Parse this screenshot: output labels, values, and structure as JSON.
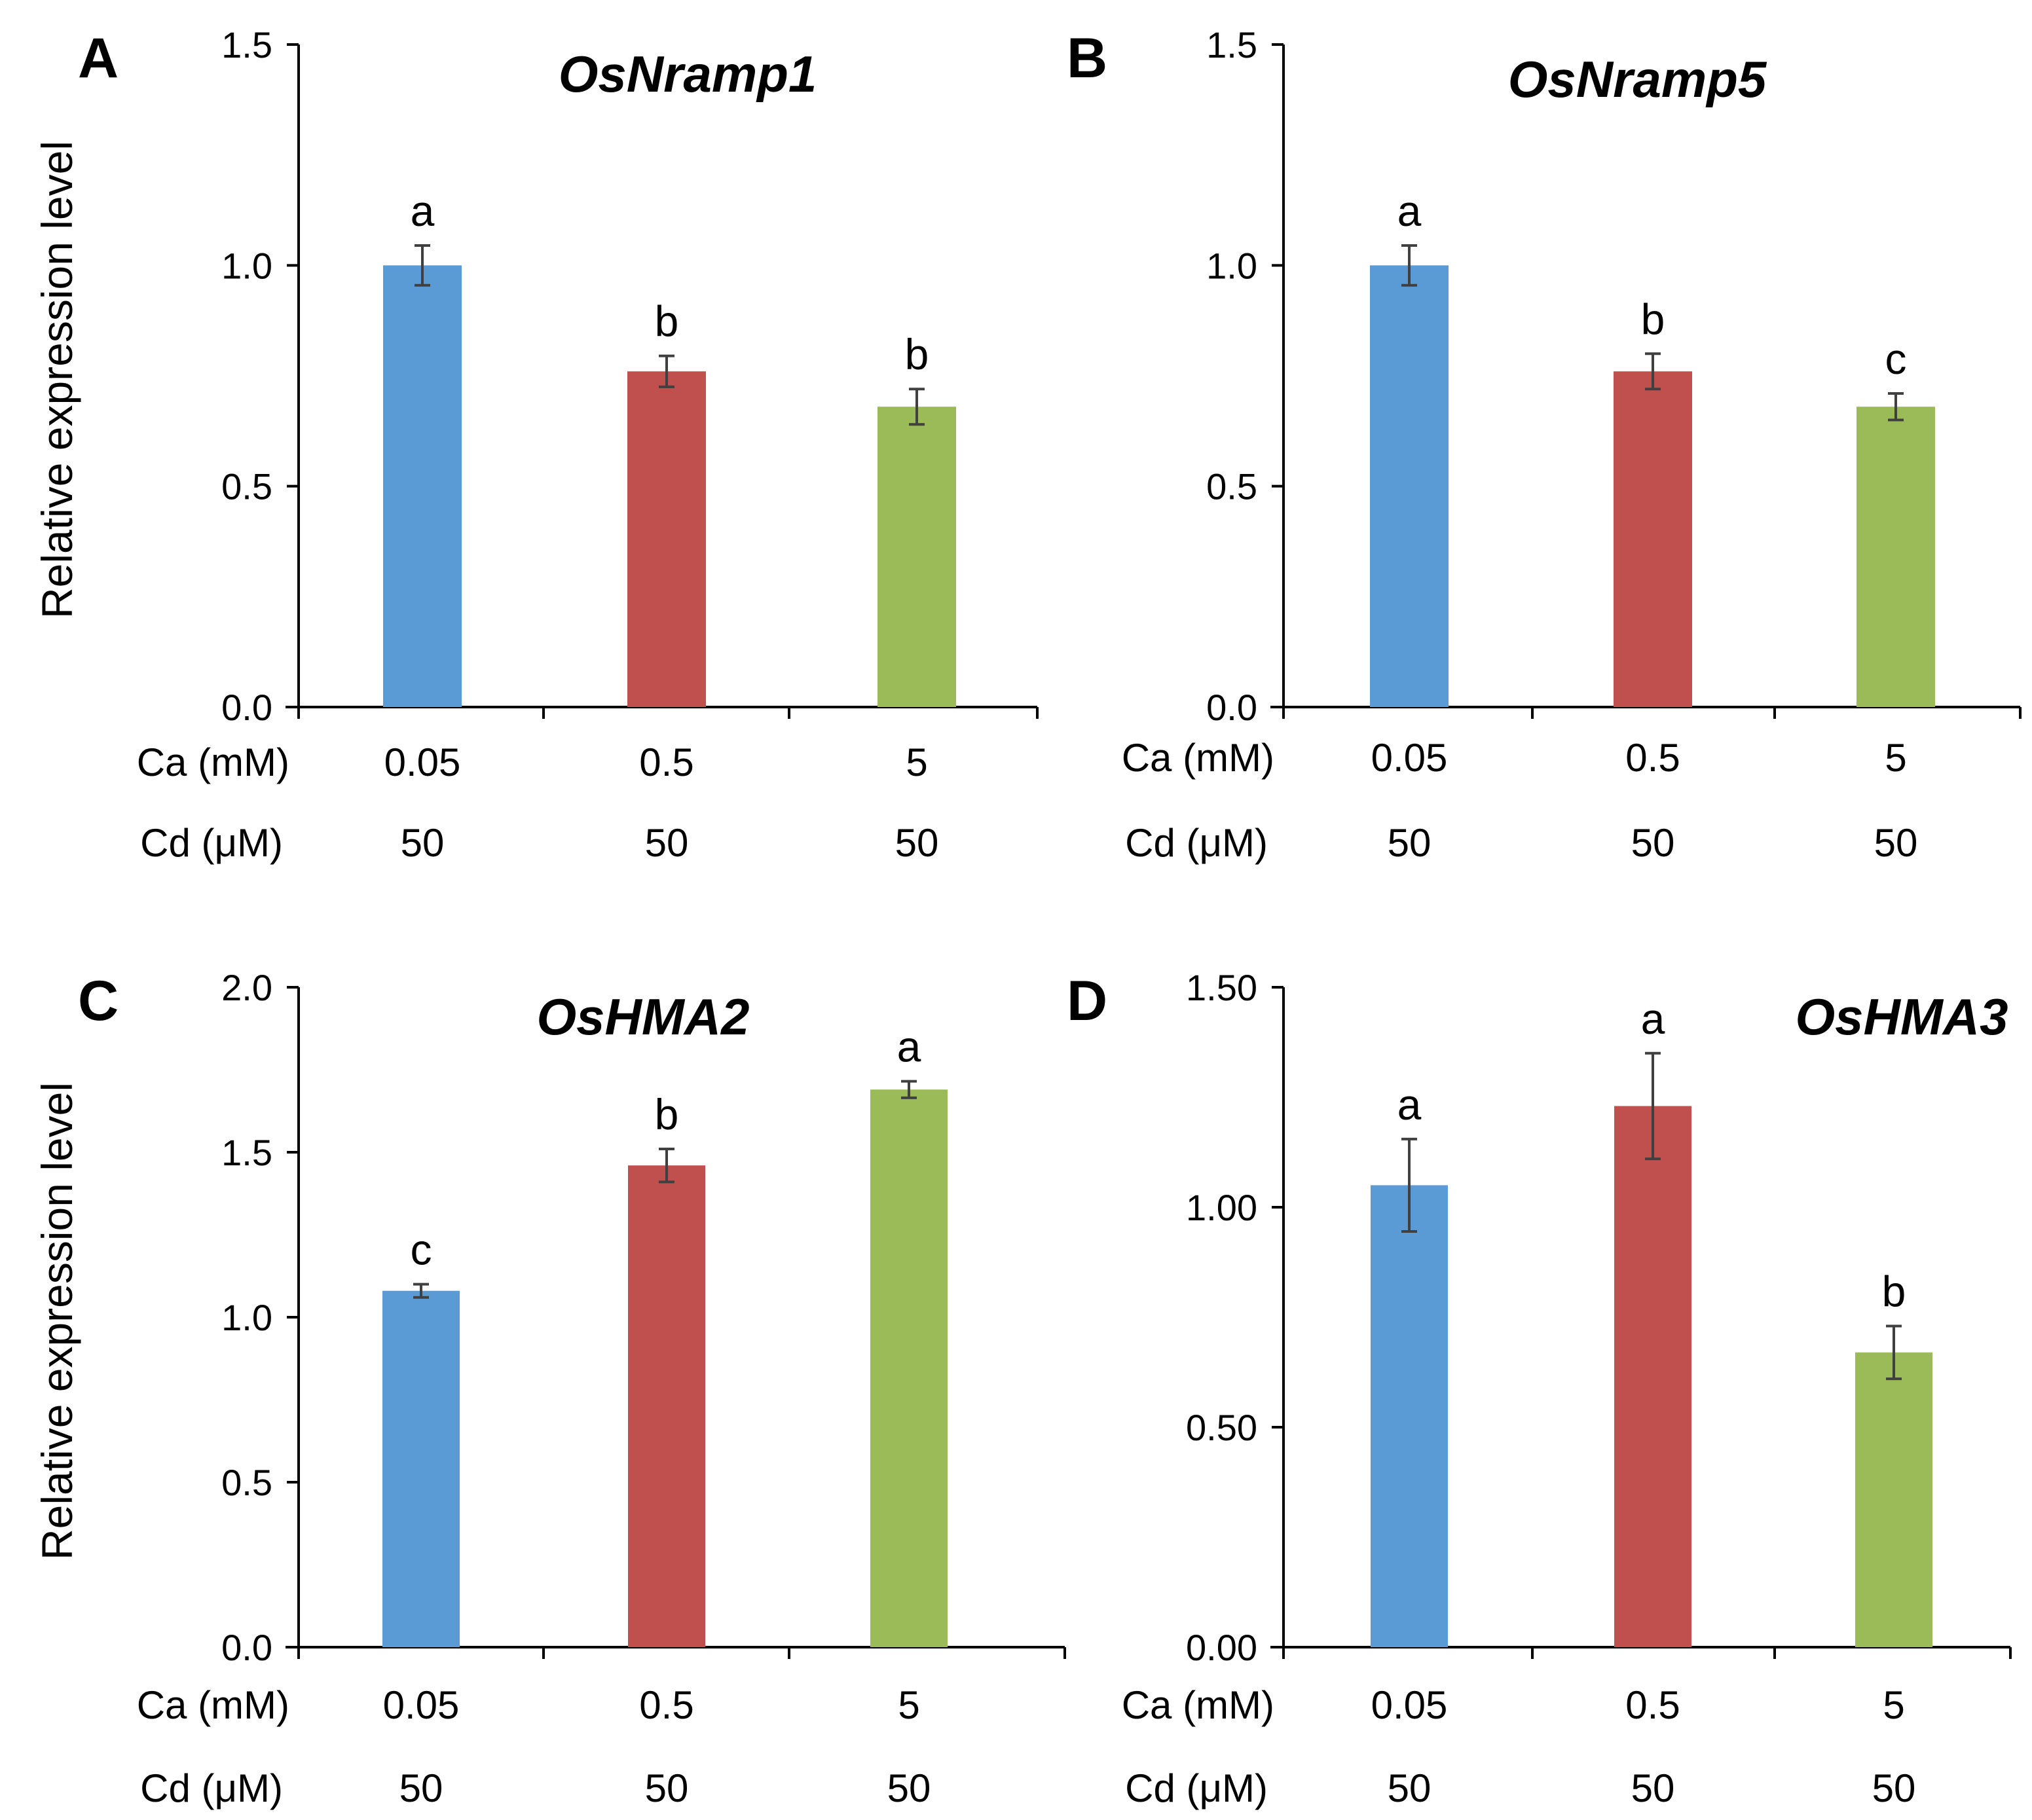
{
  "figure": {
    "y_axis_label": "Relative expression level",
    "row_labels": {
      "ca": "Ca (mM)",
      "cd": "Cd (μM)"
    }
  },
  "colors": {
    "series": [
      "#5B9BD5",
      "#C0504D",
      "#9BBB59"
    ],
    "axis": "#000000",
    "error_bar": "#404040"
  },
  "chart_data": [
    {
      "panel": "A",
      "type": "bar",
      "title": "OsNramp1",
      "ylabel": "Relative expression level",
      "ylim": [
        0,
        1.5
      ],
      "yticks": [
        "0.0",
        "0.5",
        "1.0",
        "1.5"
      ],
      "ca_mM": [
        "0.05",
        "0.5",
        "5"
      ],
      "cd_uM": [
        "50",
        "50",
        "50"
      ],
      "values": [
        1.0,
        0.76,
        0.68
      ],
      "errors": [
        0.045,
        0.035,
        0.04
      ],
      "significance": [
        "a",
        "b",
        "b"
      ]
    },
    {
      "panel": "B",
      "type": "bar",
      "title": "OsNramp5",
      "ylabel": "",
      "ylim": [
        0,
        1.5
      ],
      "yticks": [
        "0.0",
        "0.5",
        "1.0",
        "1.5"
      ],
      "ca_mM": [
        "0.05",
        "0.5",
        "5"
      ],
      "cd_uM": [
        "50",
        "50",
        "50"
      ],
      "values": [
        1.0,
        0.76,
        0.68
      ],
      "errors": [
        0.045,
        0.04,
        0.03
      ],
      "significance": [
        "a",
        "b",
        "c"
      ]
    },
    {
      "panel": "C",
      "type": "bar",
      "title": "OsHMA2",
      "ylabel": "Relative expression level",
      "ylim": [
        0,
        2.0
      ],
      "yticks": [
        "0.0",
        "0.5",
        "1.0",
        "1.5",
        "2.0"
      ],
      "ca_mM": [
        "0.05",
        "0.5",
        "5"
      ],
      "cd_uM": [
        "50",
        "50",
        "50"
      ],
      "values": [
        1.08,
        1.46,
        1.69
      ],
      "errors": [
        0.02,
        0.05,
        0.025
      ],
      "significance": [
        "c",
        "b",
        "a"
      ]
    },
    {
      "panel": "D",
      "type": "bar",
      "title": "OsHMA3",
      "ylabel": "",
      "ylim": [
        0,
        1.5
      ],
      "yticks": [
        "0.00",
        "0.50",
        "1.00",
        "1.50"
      ],
      "ca_mM": [
        "0.05",
        "0.5",
        "5"
      ],
      "cd_uM": [
        "50",
        "50",
        "50"
      ],
      "values": [
        1.05,
        1.23,
        0.67
      ],
      "errors": [
        0.105,
        0.12,
        0.06
      ],
      "significance": [
        "a",
        "a",
        "b"
      ]
    }
  ]
}
